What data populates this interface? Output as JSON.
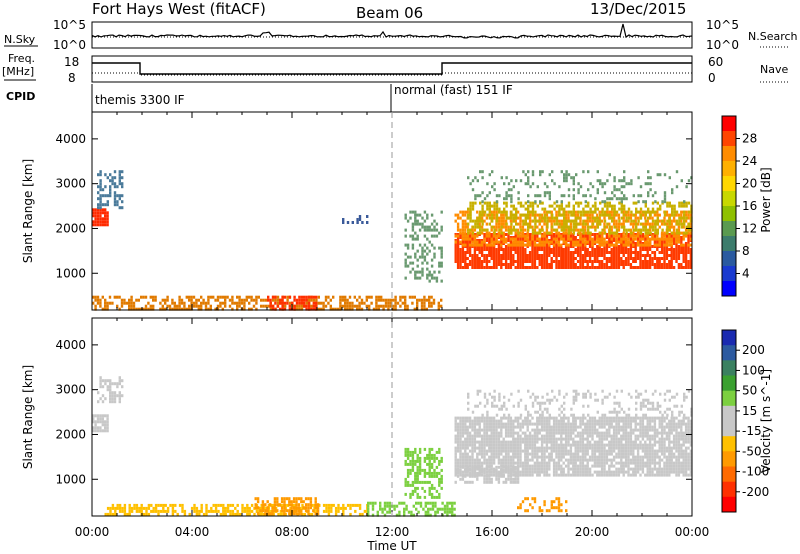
{
  "header": {
    "title": "Fort Hays West (fitACF)",
    "beam": "Beam 06",
    "date": "13/Dec/2015"
  },
  "strips": {
    "nsky_label": "N.Sky",
    "nsky_ticks": [
      "10^5",
      "10^0"
    ],
    "nsearch_label": "N.Search",
    "nsearch_ticks": [
      "10^5",
      "10^0"
    ],
    "freq_label": "Freq.",
    "freq_unit": "[MHz]",
    "freq_ticks": [
      "18",
      "8"
    ],
    "nave_label": "Nave",
    "nave_ticks": [
      "60",
      "0"
    ],
    "cpid_label": "CPID",
    "cpid_segments": [
      {
        "label": "themis 3300 IF",
        "start_hour": 0
      },
      {
        "label": "normal (fast) 151 IF",
        "start_hour": 12
      }
    ]
  },
  "colorbars": {
    "power": {
      "label": "Power [dB]",
      "ticks": [
        "28",
        "24",
        "20",
        "16",
        "12",
        "8",
        "4"
      ],
      "colors": [
        "#ff0000",
        "#ff4500",
        "#ff8c00",
        "#ffb000",
        "#ffd700",
        "#c8d800",
        "#8fc000",
        "#5a9a50",
        "#3c7c6c",
        "#2a5aa0",
        "#1a3ad0",
        "#0000ff"
      ]
    },
    "velocity": {
      "label": "Velocity [m s^-1]",
      "ticks": [
        "200",
        "100",
        "50",
        "15",
        "-15",
        "-50",
        "-100",
        "-200"
      ],
      "colors": [
        "#1a2ab0",
        "#2c5aa0",
        "#3a8060",
        "#3aa030",
        "#7cd040",
        "#c8c8c8",
        "#c8c8c8",
        "#ffc000",
        "#ff9a00",
        "#ff6a00",
        "#ff3000",
        "#ff0000"
      ]
    }
  },
  "chart_data": [
    {
      "type": "heatmap",
      "panel": "power",
      "xlabel": "",
      "ylabel": "Slant Range [km]",
      "xlim_hours": [
        0,
        24
      ],
      "ylim_km": [
        180,
        4600
      ],
      "yticks": [
        1000,
        2000,
        3000,
        4000
      ],
      "regions": [
        {
          "h0": 0.0,
          "h1": 0.6,
          "r0": 2100,
          "r1": 2450,
          "color": "#ff2a00",
          "density": 0.9
        },
        {
          "h0": 0.2,
          "h1": 1.2,
          "r0": 2450,
          "r1": 3300,
          "color": "#4a7a9a",
          "density": 0.45
        },
        {
          "h0": 0.0,
          "h1": 14.0,
          "r0": 200,
          "r1": 500,
          "color": "#e07a00",
          "density": 0.55
        },
        {
          "h0": 7.0,
          "h1": 9.0,
          "r0": 200,
          "r1": 500,
          "color": "#ff3000",
          "density": 0.6
        },
        {
          "h0": 10.0,
          "h1": 11.0,
          "r0": 2100,
          "r1": 2300,
          "color": "#3a5a9a",
          "density": 0.35
        },
        {
          "h0": 12.5,
          "h1": 14.0,
          "r0": 800,
          "r1": 2400,
          "color": "#6a9a70",
          "density": 0.35
        },
        {
          "h0": 14.5,
          "h1": 24.0,
          "r0": 1100,
          "r1": 1900,
          "color": "#ff3a00",
          "density": 0.85
        },
        {
          "h0": 14.5,
          "h1": 24.0,
          "r0": 1600,
          "r1": 2400,
          "color": "#ff8c00",
          "density": 0.6
        },
        {
          "h0": 15.0,
          "h1": 24.0,
          "r0": 1900,
          "r1": 2600,
          "color": "#c8b000",
          "density": 0.45
        },
        {
          "h0": 15.0,
          "h1": 24.0,
          "r0": 2600,
          "r1": 3300,
          "color": "#6a9a70",
          "density": 0.2
        }
      ]
    },
    {
      "type": "heatmap",
      "panel": "velocity",
      "xlabel": "Time UT",
      "ylabel": "Slant Range [km]",
      "xlim_hours": [
        0,
        24
      ],
      "ylim_km": [
        180,
        4600
      ],
      "xticks": [
        "00:00",
        "04:00",
        "08:00",
        "12:00",
        "16:00",
        "20:00",
        "00:00"
      ],
      "yticks": [
        1000,
        2000,
        3000,
        4000
      ],
      "regions": [
        {
          "h0": 0.0,
          "h1": 0.6,
          "r0": 2100,
          "r1": 2450,
          "color": "#c8c8c8",
          "density": 0.9
        },
        {
          "h0": 0.2,
          "h1": 1.2,
          "r0": 2700,
          "r1": 3300,
          "color": "#c8c8c8",
          "density": 0.4
        },
        {
          "h0": 0.5,
          "h1": 11.0,
          "r0": 200,
          "r1": 450,
          "color": "#ffc000",
          "density": 0.6
        },
        {
          "h0": 6.5,
          "h1": 9.0,
          "r0": 200,
          "r1": 600,
          "color": "#ff9a00",
          "density": 0.5
        },
        {
          "h0": 11.0,
          "h1": 14.5,
          "r0": 200,
          "r1": 500,
          "color": "#7cd040",
          "density": 0.5
        },
        {
          "h0": 12.5,
          "h1": 14.0,
          "r0": 600,
          "r1": 1700,
          "color": "#7cd040",
          "density": 0.5
        },
        {
          "h0": 14.5,
          "h1": 24.0,
          "r0": 1100,
          "r1": 2400,
          "color": "#c8c8c8",
          "density": 0.85
        },
        {
          "h0": 14.5,
          "h1": 17.0,
          "r0": 900,
          "r1": 1300,
          "color": "#c8c8c8",
          "density": 0.6
        },
        {
          "h0": 17.0,
          "h1": 19.0,
          "r0": 300,
          "r1": 600,
          "color": "#ff9a00",
          "density": 0.4
        },
        {
          "h0": 15.0,
          "h1": 24.0,
          "r0": 2400,
          "r1": 3000,
          "color": "#c8c8c8",
          "density": 0.25
        }
      ]
    }
  ]
}
